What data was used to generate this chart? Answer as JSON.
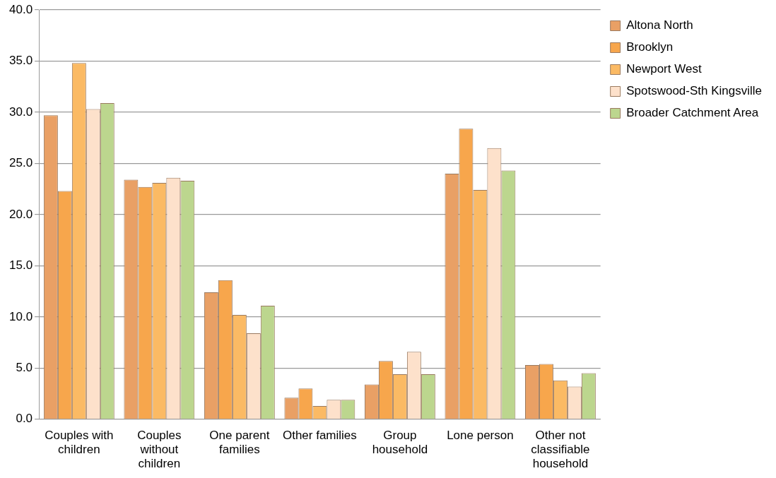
{
  "chart_data": {
    "type": "bar",
    "categories": [
      "Couples with children",
      "Couples without children",
      "One parent families",
      "Other families",
      "Group household",
      "Lone person",
      "Other not classifiable household"
    ],
    "series": [
      {
        "name": "Altona North",
        "color": "#e9a065",
        "values": [
          29.7,
          23.4,
          12.4,
          2.1,
          3.4,
          24.0,
          5.3
        ]
      },
      {
        "name": "Brooklyn",
        "color": "#f7a64c",
        "values": [
          22.3,
          22.7,
          13.6,
          3.0,
          5.7,
          28.4,
          5.4
        ]
      },
      {
        "name": "Newport West",
        "color": "#fbba64",
        "values": [
          34.8,
          23.1,
          10.2,
          1.3,
          4.4,
          22.4,
          3.8
        ]
      },
      {
        "name": "Spotswood-Sth Kingsville",
        "color": "#fde1cb",
        "values": [
          30.3,
          23.6,
          8.4,
          1.9,
          6.6,
          26.5,
          3.2
        ]
      },
      {
        "name": "Broader Catchment Area",
        "color": "#bcd68e",
        "values": [
          30.9,
          23.3,
          11.1,
          1.9,
          4.4,
          24.3,
          4.5
        ]
      }
    ],
    "ylim": [
      0,
      40
    ],
    "yticks": [
      {
        "value": 0,
        "label": "0.0"
      },
      {
        "value": 5,
        "label": "5.0"
      },
      {
        "value": 10,
        "label": "10.0"
      },
      {
        "value": 15,
        "label": "15.0"
      },
      {
        "value": 20,
        "label": "20.0"
      },
      {
        "value": 25,
        "label": "25.0"
      },
      {
        "value": 30,
        "label": "30.0"
      },
      {
        "value": 35,
        "label": "35.0"
      },
      {
        "value": 40,
        "label": "40.0"
      }
    ],
    "grid": "y",
    "legend": "right"
  }
}
